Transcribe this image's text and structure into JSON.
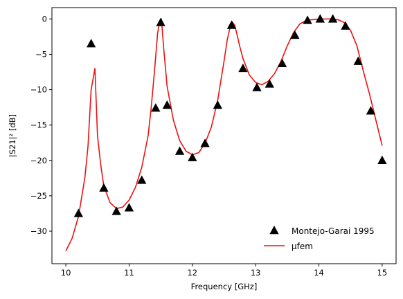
{
  "chart_data": {
    "type": "line",
    "xlabel": "Frequency [GHz]",
    "ylabel": "|S21|² [dB]",
    "xlim": [
      9.78,
      15.22
    ],
    "ylim": [
      -34.6,
      1.6
    ],
    "xticks": [
      10,
      11,
      12,
      13,
      14,
      15
    ],
    "xtick_labels": [
      "10",
      "11",
      "12",
      "13",
      "14",
      "15"
    ],
    "yticks": [
      0,
      -5,
      -10,
      -15,
      -20,
      -25,
      -30
    ],
    "ytick_labels": [
      "0",
      "−5",
      "−10",
      "−15",
      "−20",
      "−25",
      "−30"
    ],
    "grid": false,
    "legend_position": "lower-right",
    "series": [
      {
        "name": "Montejo-Garai 1995",
        "kind": "scatter",
        "marker": "triangle-up",
        "color": "#000000",
        "x": [
          10.2,
          10.4,
          10.6,
          10.8,
          11.0,
          11.2,
          11.42,
          11.5,
          11.6,
          11.8,
          12.0,
          12.2,
          12.4,
          12.62,
          12.8,
          13.02,
          13.22,
          13.42,
          13.62,
          13.82,
          14.02,
          14.22,
          14.42,
          14.62,
          14.82,
          15.0
        ],
        "y": [
          -27.5,
          -3.5,
          -23.9,
          -27.2,
          -26.7,
          -22.8,
          -12.6,
          -0.5,
          -12.2,
          -18.7,
          -19.6,
          -17.6,
          -12.2,
          -0.9,
          -7.0,
          -9.7,
          -9.2,
          -6.3,
          -2.3,
          -0.2,
          0.0,
          0.0,
          -1.0,
          -6.0,
          -13.0,
          -20.0
        ]
      },
      {
        "name": "μfem",
        "kind": "line",
        "color": "#ee1111",
        "x": [
          10.0,
          10.1,
          10.2,
          10.3,
          10.35,
          10.4,
          10.43,
          10.46,
          10.5,
          10.55,
          10.6,
          10.7,
          10.8,
          10.9,
          11.0,
          11.1,
          11.2,
          11.3,
          11.35,
          11.4,
          11.45,
          11.48,
          11.51,
          11.55,
          11.6,
          11.7,
          11.8,
          11.9,
          12.0,
          12.1,
          12.2,
          12.3,
          12.4,
          12.5,
          12.55,
          12.6,
          12.63,
          12.67,
          12.7,
          12.75,
          12.8,
          12.9,
          13.0,
          13.1,
          13.2,
          13.3,
          13.4,
          13.5,
          13.6,
          13.7,
          13.8,
          13.9,
          14.0,
          14.1,
          14.2,
          14.3,
          14.4,
          14.5,
          14.6,
          14.7,
          14.8,
          14.9,
          15.0
        ],
        "y": [
          -32.8,
          -31.0,
          -27.9,
          -22.5,
          -18.0,
          -10.0,
          -8.5,
          -7.0,
          -16.5,
          -20.5,
          -23.6,
          -26.0,
          -26.8,
          -26.6,
          -25.6,
          -23.8,
          -21.0,
          -16.5,
          -12.5,
          -7.5,
          -2.0,
          -0.5,
          0.0,
          -4.5,
          -9.5,
          -14.3,
          -17.2,
          -18.7,
          -19.2,
          -18.9,
          -17.6,
          -15.3,
          -11.5,
          -6.0,
          -3.0,
          -1.0,
          -0.4,
          -0.9,
          -2.0,
          -3.9,
          -5.6,
          -7.9,
          -9.0,
          -9.3,
          -8.8,
          -7.7,
          -6.0,
          -3.8,
          -1.9,
          -0.7,
          -0.2,
          -0.1,
          0.0,
          0.0,
          0.0,
          -0.1,
          -0.5,
          -1.6,
          -3.8,
          -7.3,
          -10.6,
          -14.3,
          -17.9
        ]
      }
    ]
  }
}
